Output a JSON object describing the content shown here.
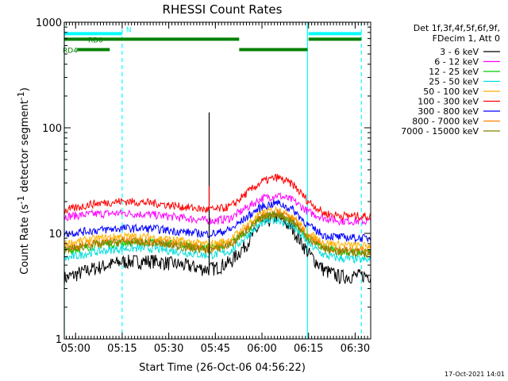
{
  "chart_data": {
    "type": "line",
    "title": "RHESSI Count Rates",
    "xlabel": "Start Time (26-Oct-06 04:56:22)",
    "ylabel": "Count Rate (s",
    "ylabel_sup": "-1",
    "ylabel_tail": " detector segment",
    "ylabel_end": ")",
    "y_scale": "log",
    "ylim": [
      1,
      1000
    ],
    "xlim": [
      "04:56:22",
      "06:35:00"
    ],
    "y_ticks": [
      {
        "v": 1,
        "label": "1"
      },
      {
        "v": 10,
        "label": "10"
      },
      {
        "v": 100,
        "label": "100"
      },
      {
        "v": 1000,
        "label": "1000"
      }
    ],
    "x_ticks": [
      {
        "t": "05:00",
        "label": "05:00"
      },
      {
        "t": "05:15",
        "label": "05:15"
      },
      {
        "t": "05:30",
        "label": "05:30"
      },
      {
        "t": "05:45",
        "label": "05:45"
      },
      {
        "t": "06:00",
        "label": "06:00"
      },
      {
        "t": "06:15",
        "label": "06:15"
      },
      {
        "t": "06:30",
        "label": "06:30"
      }
    ],
    "legend_header": [
      "Det 1f,3f,4f,5f,6f,9f,",
      "FDecim 1, Att 0"
    ],
    "legend_placement": "right",
    "series": [
      {
        "name": "3 - 6 keV",
        "color": "#000000",
        "t": [
          "04:57",
          "05:05",
          "05:15",
          "05:25",
          "05:35",
          "05:42",
          "05:45",
          "05:50",
          "05:55",
          "06:00",
          "06:05",
          "06:10",
          "06:15",
          "06:20",
          "06:25",
          "06:33"
        ],
        "values": [
          3.8,
          4.6,
          5.4,
          5.5,
          5.0,
          4.6,
          4.7,
          5.4,
          8.0,
          12.5,
          14.5,
          11.0,
          6.5,
          4.5,
          3.9,
          4.0
        ]
      },
      {
        "name": "6 - 12 keV",
        "color": "#ff00ff",
        "t": [
          "04:57",
          "05:05",
          "05:15",
          "05:25",
          "05:35",
          "05:42",
          "05:45",
          "05:50",
          "05:55",
          "06:00",
          "06:05",
          "06:10",
          "06:15",
          "06:20",
          "06:25",
          "06:33"
        ],
        "values": [
          14.5,
          15.2,
          15.6,
          15.0,
          14.0,
          13.3,
          13.2,
          14.0,
          17.5,
          21.5,
          23.0,
          20.5,
          16.0,
          14.0,
          13.2,
          13.0
        ]
      },
      {
        "name": "12 - 25 keV",
        "color": "#00cc00",
        "t": [
          "04:57",
          "05:05",
          "05:15",
          "05:25",
          "05:35",
          "05:42",
          "05:45",
          "05:50",
          "05:55",
          "06:00",
          "06:05",
          "06:10",
          "06:15",
          "06:20",
          "06:25",
          "06:33"
        ],
        "values": [
          6.8,
          7.6,
          8.2,
          8.3,
          7.8,
          7.4,
          7.4,
          8.0,
          10.8,
          14.0,
          15.2,
          13.0,
          9.0,
          7.2,
          6.8,
          6.6
        ]
      },
      {
        "name": "25 - 50 keV",
        "color": "#00dddd",
        "t": [
          "04:57",
          "05:05",
          "05:15",
          "05:25",
          "05:35",
          "05:42",
          "05:45",
          "05:50",
          "05:55",
          "06:00",
          "06:05",
          "06:10",
          "06:15",
          "06:20",
          "06:25",
          "06:33"
        ],
        "values": [
          5.8,
          6.6,
          7.2,
          7.2,
          6.6,
          6.2,
          6.3,
          6.8,
          9.4,
          12.5,
          13.6,
          11.6,
          8.0,
          6.2,
          5.8,
          5.6
        ]
      },
      {
        "name": "50 - 100 keV",
        "color": "#ffb000",
        "t": [
          "04:57",
          "05:05",
          "05:15",
          "05:25",
          "05:35",
          "05:42",
          "05:45",
          "05:50",
          "05:55",
          "06:00",
          "06:05",
          "06:10",
          "06:15",
          "06:20",
          "06:25",
          "06:33"
        ],
        "values": [
          8.0,
          8.8,
          9.4,
          9.2,
          8.4,
          7.9,
          8.0,
          8.8,
          12.0,
          15.5,
          17.0,
          14.5,
          10.0,
          8.2,
          7.8,
          7.6
        ]
      },
      {
        "name": "100 - 300 keV",
        "color": "#ff0000",
        "t": [
          "04:57",
          "05:05",
          "05:15",
          "05:25",
          "05:35",
          "05:42",
          "05:45",
          "05:50",
          "05:55",
          "06:00",
          "06:05",
          "06:10",
          "06:15",
          "06:20",
          "06:25",
          "06:33"
        ],
        "values": [
          16.5,
          19.0,
          20.2,
          19.4,
          17.8,
          16.8,
          16.8,
          18.0,
          24.0,
          31.0,
          34.0,
          29.0,
          20.0,
          15.5,
          14.8,
          14.5
        ]
      },
      {
        "name": "300 - 800 keV",
        "color": "#0000ff",
        "t": [
          "04:57",
          "05:05",
          "05:15",
          "05:25",
          "05:35",
          "05:42",
          "05:45",
          "05:50",
          "05:55",
          "06:00",
          "06:05",
          "06:10",
          "06:15",
          "06:20",
          "06:25",
          "06:33"
        ],
        "values": [
          10.0,
          10.6,
          11.2,
          11.1,
          10.3,
          9.9,
          10.0,
          10.9,
          14.2,
          18.0,
          19.5,
          16.8,
          11.8,
          9.6,
          9.2,
          9.0
        ]
      },
      {
        "name": "800 - 7000 keV",
        "color": "#ff8000",
        "t": [
          "04:57",
          "05:05",
          "05:15",
          "05:25",
          "05:35",
          "05:42",
          "05:45",
          "05:50",
          "05:55",
          "06:00",
          "06:05",
          "06:10",
          "06:15",
          "06:20",
          "06:25",
          "06:33"
        ],
        "values": [
          7.2,
          8.0,
          8.6,
          8.4,
          7.7,
          7.2,
          7.3,
          8.0,
          11.0,
          14.6,
          16.0,
          13.6,
          9.2,
          7.4,
          7.0,
          6.8
        ]
      },
      {
        "name": "7000 - 15000 keV",
        "color": "#808000",
        "t": [
          "04:57",
          "05:05",
          "05:15",
          "05:25",
          "05:35",
          "05:42",
          "05:45",
          "05:50",
          "05:55",
          "06:00",
          "06:05",
          "06:10",
          "06:15",
          "06:20",
          "06:25",
          "06:33"
        ],
        "values": [
          7.0,
          7.8,
          8.3,
          8.1,
          7.4,
          7.0,
          7.1,
          7.8,
          10.6,
          14.0,
          15.4,
          13.0,
          8.8,
          7.1,
          6.7,
          6.5
        ]
      }
    ],
    "spike": {
      "t": "05:43",
      "values": [
        {
          "color": "#000000",
          "v": 140
        },
        {
          "color": "#ff0000",
          "v": 28
        }
      ]
    },
    "flag_bars": [
      {
        "label": "N",
        "color": "#00ffff",
        "y": 780,
        "segments": [
          [
            "04:56:22",
            "05:15"
          ],
          [
            "06:15",
            "06:32"
          ]
        ]
      },
      {
        "label": "RD0",
        "color": "#008000",
        "y": 690,
        "segments": [
          [
            "04:56:22",
            "05:52:40"
          ],
          [
            "06:15",
            "06:32"
          ]
        ]
      },
      {
        "label": "RD4",
        "color": "#008000",
        "y": 550,
        "segments": [
          [
            "05:00:30",
            "05:11"
          ],
          [
            "05:52:40",
            "06:14:40"
          ]
        ]
      }
    ],
    "night_markers": {
      "color": "#00ffff",
      "solid": [
        "04:56:22",
        "06:14:40"
      ],
      "dashed": [
        "05:15",
        "06:32"
      ]
    },
    "footer_date": "17-Oct-2021 14:01"
  }
}
